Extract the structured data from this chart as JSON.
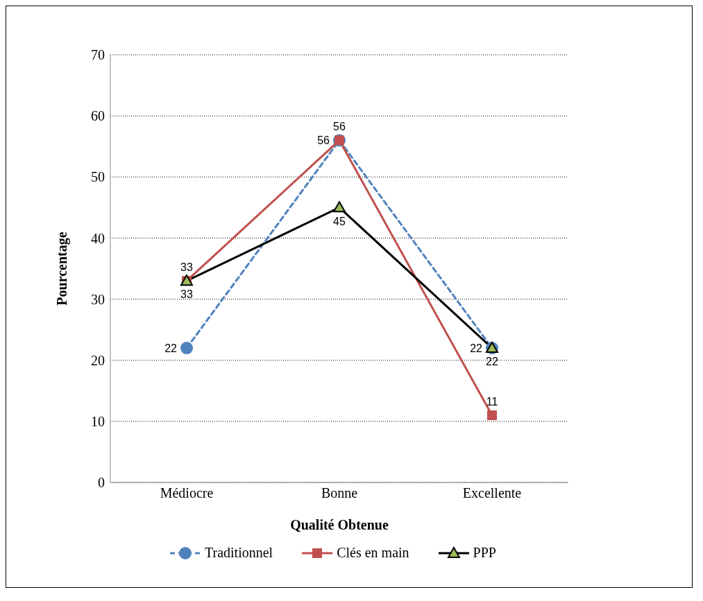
{
  "chart_data": {
    "type": "line",
    "xlabel": "Qualité Obtenue",
    "ylabel": "Pourcentage",
    "categories": [
      "Médiocre",
      "Bonne",
      "Excellente"
    ],
    "series": [
      {
        "name": "Traditionnel",
        "color": "#4f81bd",
        "values": [
          22,
          56,
          22
        ],
        "marker": "circle",
        "line_style": "dashed"
      },
      {
        "name": "Clés en main",
        "color": "#c0504d",
        "values": [
          33,
          56,
          11
        ],
        "marker": "square",
        "line_style": "solid"
      },
      {
        "name": "PPP",
        "color": "#000000",
        "values": [
          33,
          45,
          22
        ],
        "marker": "triangle",
        "line_style": "solid"
      }
    ],
    "ylim": [
      0,
      70
    ],
    "yticks": [
      0,
      10,
      20,
      30,
      40,
      50,
      60,
      70
    ],
    "grid": "y",
    "legend": "bottom",
    "data_labels": true
  }
}
